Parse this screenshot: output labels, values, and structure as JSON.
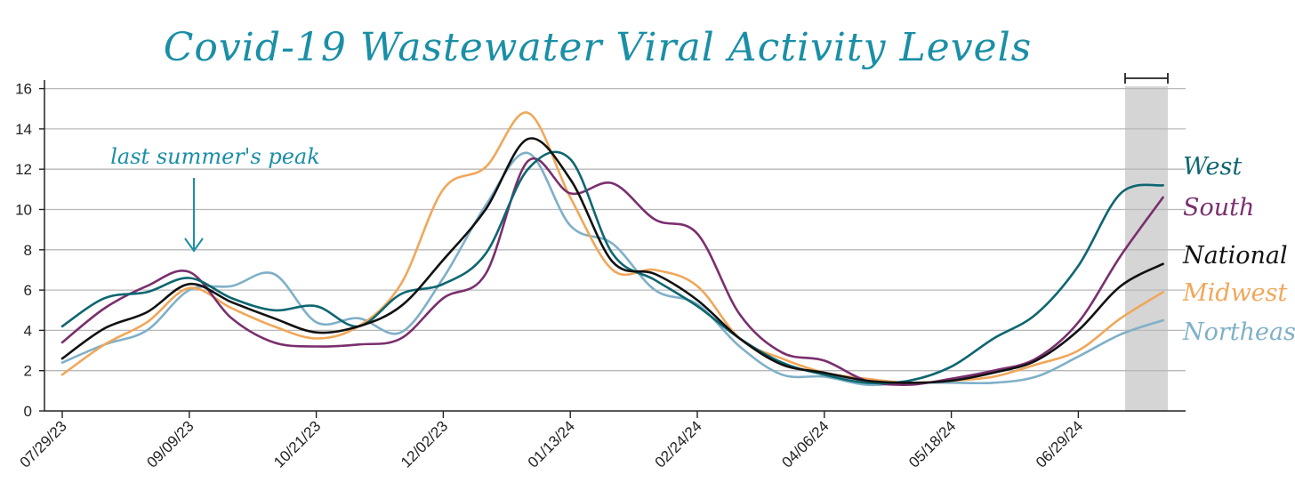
{
  "chart_data": {
    "type": "line",
    "title": "Covid-19 Wastewater Viral Activity Levels",
    "annotation": "last summer's peak",
    "ylim": [
      0,
      16
    ],
    "yticks": [
      0,
      2,
      4,
      6,
      8,
      10,
      12,
      14,
      16
    ],
    "xticks": [
      "07/29/23",
      "09/09/23",
      "10/21/23",
      "12/02/23",
      "01/13/24",
      "02/24/24",
      "04/06/24",
      "05/18/24",
      "06/29/24"
    ],
    "grid": true,
    "x": [
      "07/29/23",
      "08/12/23",
      "08/26/23",
      "09/09/23",
      "09/23/23",
      "10/07/23",
      "10/21/23",
      "11/04/23",
      "11/18/23",
      "12/02/23",
      "12/16/23",
      "12/30/23",
      "01/13/24",
      "01/27/24",
      "02/10/24",
      "02/24/24",
      "03/09/24",
      "03/23/24",
      "04/06/24",
      "04/20/24",
      "05/04/24",
      "05/18/24",
      "06/01/24",
      "06/15/24",
      "06/29/24",
      "07/13/24",
      "07/27/24"
    ],
    "series": [
      {
        "name": "West",
        "color": "#0e6670",
        "values": [
          4.2,
          5.6,
          5.9,
          6.6,
          5.6,
          5.0,
          5.2,
          4.2,
          5.8,
          6.3,
          7.8,
          12.0,
          12.5,
          7.8,
          6.5,
          5.2,
          3.6,
          2.4,
          1.8,
          1.4,
          1.5,
          2.2,
          3.6,
          4.8,
          7.2,
          10.8,
          11.2
        ]
      },
      {
        "name": "South",
        "color": "#7a2f6e",
        "values": [
          3.4,
          5.1,
          6.2,
          6.9,
          4.6,
          3.4,
          3.2,
          3.3,
          3.6,
          5.6,
          6.8,
          12.4,
          10.8,
          11.3,
          9.5,
          8.8,
          4.8,
          2.9,
          2.5,
          1.5,
          1.3,
          1.6,
          2.0,
          2.6,
          4.4,
          7.7,
          10.6
        ]
      },
      {
        "name": "National",
        "color": "#111111",
        "values": [
          2.6,
          4.1,
          4.9,
          6.3,
          5.4,
          4.6,
          3.9,
          4.2,
          5.2,
          7.5,
          10.0,
          13.5,
          11.5,
          7.4,
          6.8,
          5.5,
          3.6,
          2.3,
          1.9,
          1.5,
          1.4,
          1.5,
          1.9,
          2.5,
          4.0,
          6.2,
          7.3
        ]
      },
      {
        "name": "Midwest",
        "color": "#f0a75a",
        "values": [
          1.8,
          3.3,
          4.4,
          6.1,
          5.1,
          4.2,
          3.6,
          4.2,
          6.3,
          11.0,
          12.1,
          14.8,
          10.6,
          7.0,
          7.0,
          6.2,
          3.6,
          2.6,
          1.9,
          1.6,
          1.4,
          1.5,
          1.7,
          2.3,
          3.0,
          4.6,
          5.9
        ]
      },
      {
        "name": "Northeast",
        "color": "#7fb0c8",
        "values": [
          2.4,
          3.3,
          4.0,
          6.0,
          6.2,
          6.8,
          4.4,
          4.6,
          3.9,
          6.6,
          10.2,
          12.8,
          9.2,
          8.3,
          6.0,
          5.3,
          3.2,
          1.8,
          1.7,
          1.3,
          1.4,
          1.4,
          1.4,
          1.7,
          2.7,
          3.8,
          4.5
        ]
      }
    ]
  }
}
